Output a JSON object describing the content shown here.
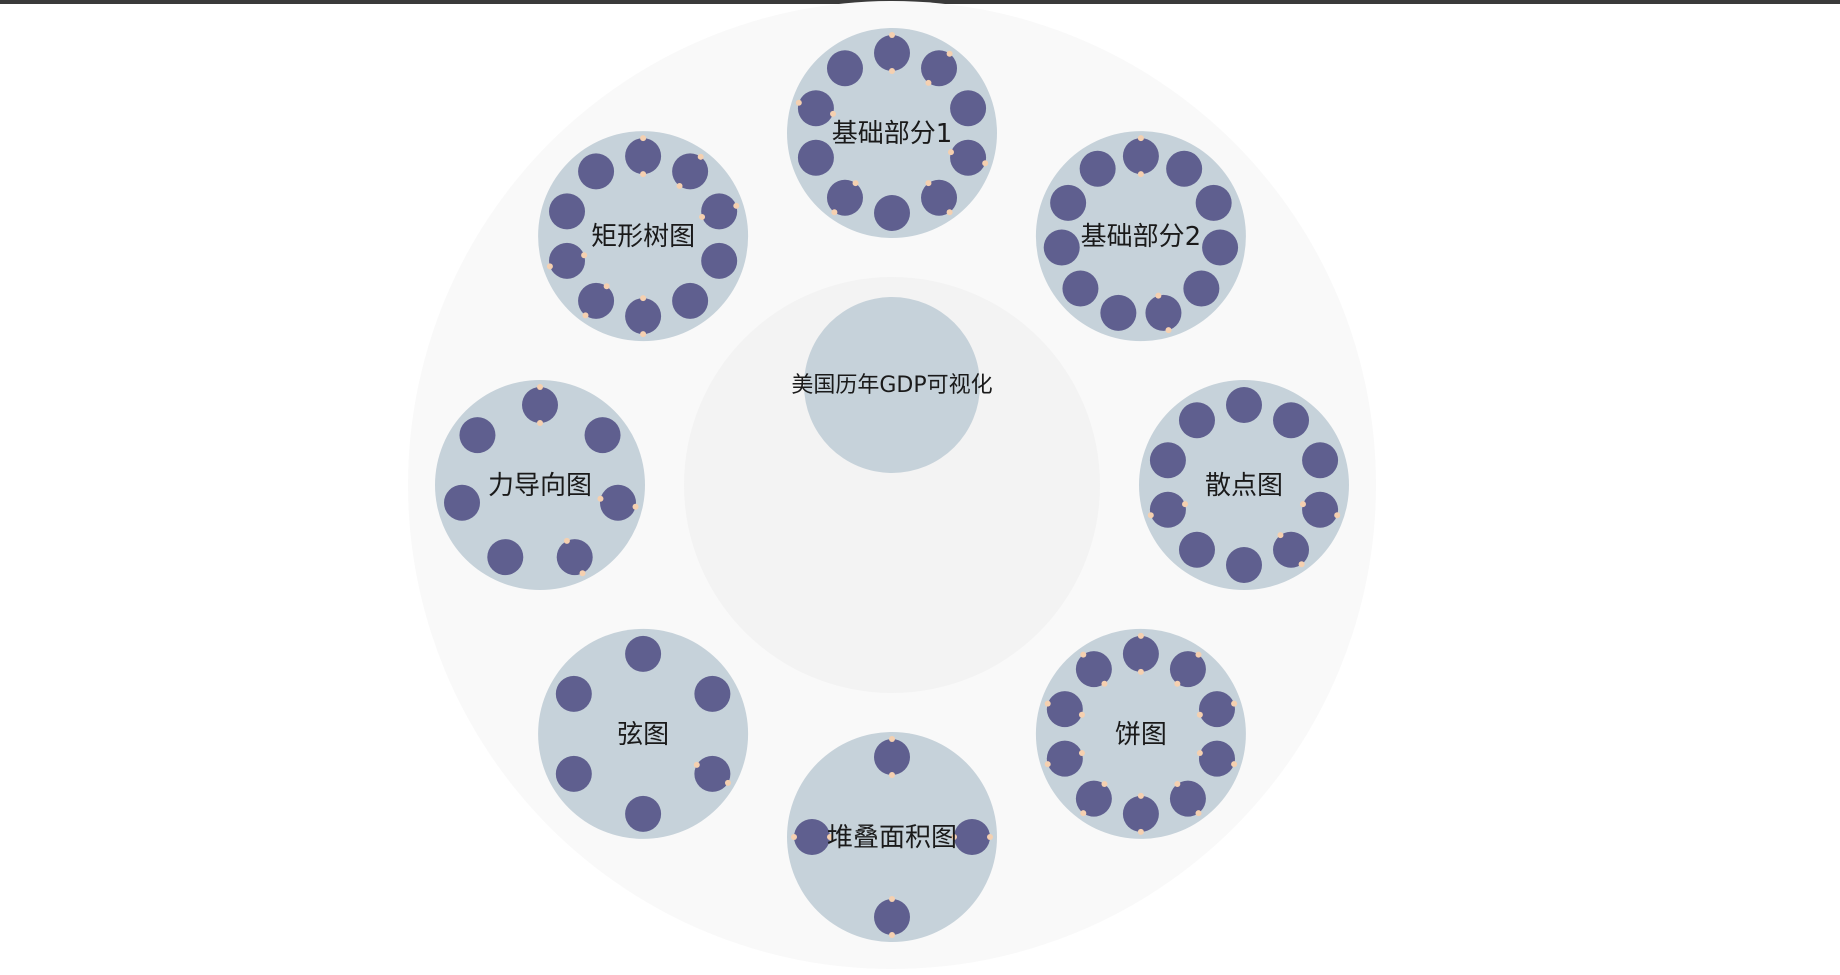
{
  "colors": {
    "topbar": "#3a3a3a",
    "outer_ring": "#f9f9f9",
    "inner_ring": "#f3f3f3",
    "cluster_fill": "#c6d2da",
    "node_fill": "#5f5f8f",
    "marker_fill": "#f5d0b0",
    "text": "#1a1a1a"
  },
  "center": {
    "label": "美国历年GDP可视化"
  },
  "clusters": [
    {
      "label": "基础部分1",
      "node_count": 10,
      "decorated_nodes": [
        0,
        1,
        3,
        4,
        6,
        8
      ]
    },
    {
      "label": "基础部分2",
      "node_count": 11,
      "decorated_nodes": [
        0,
        5
      ]
    },
    {
      "label": "散点图",
      "node_count": 10,
      "decorated_nodes": [
        3,
        4,
        7
      ]
    },
    {
      "label": "饼图",
      "node_count": 10,
      "decorated_nodes": [
        0,
        1,
        2,
        3,
        4,
        5,
        6,
        7,
        8,
        9
      ]
    },
    {
      "label": "堆叠面积图",
      "node_count": 4,
      "decorated_nodes": [
        0,
        1,
        2,
        3
      ]
    },
    {
      "label": "弦图",
      "node_count": 6,
      "decorated_nodes": [
        2
      ]
    },
    {
      "label": "力导向图",
      "node_count": 7,
      "decorated_nodes": [
        0,
        2,
        3
      ]
    },
    {
      "label": "矩形树图",
      "node_count": 10,
      "decorated_nodes": [
        0,
        1,
        2,
        5,
        6,
        7
      ]
    }
  ]
}
